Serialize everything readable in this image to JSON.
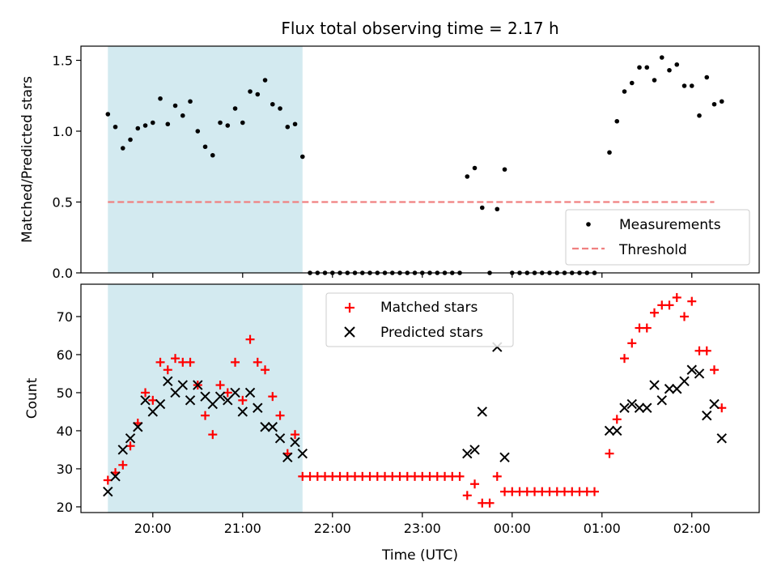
{
  "title": "Flux total observing time = 2.17 h",
  "chart_data": [
    {
      "type": "scatter",
      "panel": "top",
      "ylabel": "Matched/Predicted stars",
      "xlabel": "",
      "ylim": [
        0.0,
        1.6
      ],
      "yticks": [
        0.0,
        0.5,
        1.0,
        1.5
      ],
      "ytick_labels": [
        "0.0",
        "0.5",
        "1.0",
        "1.5"
      ],
      "shaded_interval": [
        "19:30",
        "21:40"
      ],
      "shade_color": "#d3eaf0",
      "legend_position": "lower right",
      "series": [
        {
          "name": "Measurements",
          "marker": "dot",
          "color": "#000000",
          "points": [
            [
              "19:30",
              1.12
            ],
            [
              "19:35",
              1.03
            ],
            [
              "19:40",
              0.88
            ],
            [
              "19:45",
              0.94
            ],
            [
              "19:50",
              1.02
            ],
            [
              "19:55",
              1.04
            ],
            [
              "20:00",
              1.06
            ],
            [
              "20:05",
              1.23
            ],
            [
              "20:10",
              1.05
            ],
            [
              "20:15",
              1.18
            ],
            [
              "20:20",
              1.11
            ],
            [
              "20:25",
              1.21
            ],
            [
              "20:30",
              1.0
            ],
            [
              "20:35",
              0.89
            ],
            [
              "20:40",
              0.83
            ],
            [
              "20:45",
              1.06
            ],
            [
              "20:50",
              1.04
            ],
            [
              "20:55",
              1.16
            ],
            [
              "21:00",
              1.06
            ],
            [
              "21:05",
              1.28
            ],
            [
              "21:10",
              1.26
            ],
            [
              "21:15",
              1.36
            ],
            [
              "21:20",
              1.19
            ],
            [
              "21:25",
              1.16
            ],
            [
              "21:30",
              1.03
            ],
            [
              "21:35",
              1.05
            ],
            [
              "21:40",
              0.82
            ],
            [
              "21:45",
              0.0
            ],
            [
              "21:50",
              0.0
            ],
            [
              "21:55",
              0.0
            ],
            [
              "22:00",
              0.0
            ],
            [
              "22:05",
              0.0
            ],
            [
              "22:10",
              0.0
            ],
            [
              "22:15",
              0.0
            ],
            [
              "22:20",
              0.0
            ],
            [
              "22:25",
              0.0
            ],
            [
              "22:30",
              0.0
            ],
            [
              "22:35",
              0.0
            ],
            [
              "22:40",
              0.0
            ],
            [
              "22:45",
              0.0
            ],
            [
              "22:50",
              0.0
            ],
            [
              "22:55",
              0.0
            ],
            [
              "23:00",
              0.0
            ],
            [
              "23:05",
              0.0
            ],
            [
              "23:10",
              0.0
            ],
            [
              "23:15",
              0.0
            ],
            [
              "23:20",
              0.0
            ],
            [
              "23:25",
              0.0
            ],
            [
              "23:30",
              0.68
            ],
            [
              "23:35",
              0.74
            ],
            [
              "23:40",
              0.46
            ],
            [
              "23:45",
              0.0
            ],
            [
              "23:50",
              0.45
            ],
            [
              "23:55",
              0.73
            ],
            [
              "00:00",
              0.0
            ],
            [
              "00:05",
              0.0
            ],
            [
              "00:10",
              0.0
            ],
            [
              "00:15",
              0.0
            ],
            [
              "00:20",
              0.0
            ],
            [
              "00:25",
              0.0
            ],
            [
              "00:30",
              0.0
            ],
            [
              "00:35",
              0.0
            ],
            [
              "00:40",
              0.0
            ],
            [
              "00:45",
              0.0
            ],
            [
              "00:50",
              0.0
            ],
            [
              "00:55",
              0.0
            ],
            [
              "01:05",
              0.85
            ],
            [
              "01:10",
              1.07
            ],
            [
              "01:15",
              1.28
            ],
            [
              "01:20",
              1.34
            ],
            [
              "01:25",
              1.45
            ],
            [
              "01:30",
              1.45
            ],
            [
              "01:35",
              1.36
            ],
            [
              "01:40",
              1.52
            ],
            [
              "01:45",
              1.43
            ],
            [
              "01:50",
              1.47
            ],
            [
              "01:55",
              1.32
            ],
            [
              "02:00",
              1.32
            ],
            [
              "02:05",
              1.11
            ],
            [
              "02:10",
              1.38
            ],
            [
              "02:15",
              1.19
            ],
            [
              "02:20",
              1.21
            ]
          ]
        },
        {
          "name": "Threshold",
          "marker": "dashed-line",
          "color": "#f08080",
          "points": [
            [
              "19:30",
              0.5
            ],
            [
              "02:15",
              0.5
            ]
          ]
        }
      ]
    },
    {
      "type": "scatter",
      "panel": "bottom",
      "ylabel": "Count",
      "xlabel": "Time (UTC)",
      "ylim": [
        18.5,
        78.5
      ],
      "yticks": [
        20,
        30,
        40,
        50,
        60,
        70
      ],
      "ytick_labels": [
        "20",
        "30",
        "40",
        "50",
        "60",
        "70"
      ],
      "shaded_interval": [
        "19:30",
        "21:40"
      ],
      "legend_position": "upper center",
      "x_range": [
        "19:12",
        "02:45"
      ],
      "xticks": [
        "20:00",
        "21:00",
        "22:00",
        "23:00",
        "00:00",
        "01:00",
        "02:00"
      ],
      "series": [
        {
          "name": "Matched stars",
          "marker": "plus",
          "color": "#ff0000",
          "points": [
            [
              "19:30",
              27
            ],
            [
              "19:35",
              29
            ],
            [
              "19:40",
              31
            ],
            [
              "19:45",
              36
            ],
            [
              "19:50",
              42
            ],
            [
              "19:55",
              50
            ],
            [
              "20:00",
              48
            ],
            [
              "20:05",
              58
            ],
            [
              "20:10",
              56
            ],
            [
              "20:15",
              59
            ],
            [
              "20:20",
              58
            ],
            [
              "20:25",
              58
            ],
            [
              "20:30",
              52
            ],
            [
              "20:35",
              44
            ],
            [
              "20:40",
              39
            ],
            [
              "20:45",
              52
            ],
            [
              "20:50",
              50
            ],
            [
              "20:55",
              58
            ],
            [
              "21:00",
              48
            ],
            [
              "21:05",
              64
            ],
            [
              "21:10",
              58
            ],
            [
              "21:15",
              56
            ],
            [
              "21:20",
              49
            ],
            [
              "21:25",
              44
            ],
            [
              "21:30",
              34
            ],
            [
              "21:35",
              39
            ],
            [
              "21:40",
              28
            ],
            [
              "21:45",
              28
            ],
            [
              "21:50",
              28
            ],
            [
              "21:55",
              28
            ],
            [
              "22:00",
              28
            ],
            [
              "22:05",
              28
            ],
            [
              "22:10",
              28
            ],
            [
              "22:15",
              28
            ],
            [
              "22:20",
              28
            ],
            [
              "22:25",
              28
            ],
            [
              "22:30",
              28
            ],
            [
              "22:35",
              28
            ],
            [
              "22:40",
              28
            ],
            [
              "22:45",
              28
            ],
            [
              "22:50",
              28
            ],
            [
              "22:55",
              28
            ],
            [
              "23:00",
              28
            ],
            [
              "23:05",
              28
            ],
            [
              "23:10",
              28
            ],
            [
              "23:15",
              28
            ],
            [
              "23:20",
              28
            ],
            [
              "23:25",
              28
            ],
            [
              "23:30",
              23
            ],
            [
              "23:35",
              26
            ],
            [
              "23:40",
              21
            ],
            [
              "23:45",
              21
            ],
            [
              "23:50",
              28
            ],
            [
              "23:55",
              24
            ],
            [
              "00:00",
              24
            ],
            [
              "00:05",
              24
            ],
            [
              "00:10",
              24
            ],
            [
              "00:15",
              24
            ],
            [
              "00:20",
              24
            ],
            [
              "00:25",
              24
            ],
            [
              "00:30",
              24
            ],
            [
              "00:35",
              24
            ],
            [
              "00:40",
              24
            ],
            [
              "00:45",
              24
            ],
            [
              "00:50",
              24
            ],
            [
              "00:55",
              24
            ],
            [
              "01:05",
              34
            ],
            [
              "01:10",
              43
            ],
            [
              "01:15",
              59
            ],
            [
              "01:20",
              63
            ],
            [
              "01:25",
              67
            ],
            [
              "01:30",
              67
            ],
            [
              "01:35",
              71
            ],
            [
              "01:40",
              73
            ],
            [
              "01:45",
              73
            ],
            [
              "01:50",
              75
            ],
            [
              "01:55",
              70
            ],
            [
              "02:00",
              74
            ],
            [
              "02:05",
              61
            ],
            [
              "02:10",
              61
            ],
            [
              "02:15",
              56
            ],
            [
              "02:20",
              46
            ]
          ]
        },
        {
          "name": "Predicted stars",
          "marker": "x",
          "color": "#000000",
          "points": [
            [
              "19:30",
              24
            ],
            [
              "19:35",
              28
            ],
            [
              "19:40",
              35
            ],
            [
              "19:45",
              38
            ],
            [
              "19:50",
              41
            ],
            [
              "19:55",
              48
            ],
            [
              "20:00",
              45
            ],
            [
              "20:05",
              47
            ],
            [
              "20:10",
              53
            ],
            [
              "20:15",
              50
            ],
            [
              "20:20",
              52
            ],
            [
              "20:25",
              48
            ],
            [
              "20:30",
              52
            ],
            [
              "20:35",
              49
            ],
            [
              "20:40",
              47
            ],
            [
              "20:45",
              49
            ],
            [
              "20:50",
              48
            ],
            [
              "20:55",
              50
            ],
            [
              "21:00",
              45
            ],
            [
              "21:05",
              50
            ],
            [
              "21:10",
              46
            ],
            [
              "21:15",
              41
            ],
            [
              "21:20",
              41
            ],
            [
              "21:25",
              38
            ],
            [
              "21:30",
              33
            ],
            [
              "21:35",
              37
            ],
            [
              "21:40",
              34
            ],
            [
              "23:30",
              34
            ],
            [
              "23:35",
              35
            ],
            [
              "23:40",
              45
            ],
            [
              "23:50",
              62
            ],
            [
              "23:55",
              33
            ],
            [
              "01:05",
              40
            ],
            [
              "01:10",
              40
            ],
            [
              "01:15",
              46
            ],
            [
              "01:20",
              47
            ],
            [
              "01:25",
              46
            ],
            [
              "01:30",
              46
            ],
            [
              "01:35",
              52
            ],
            [
              "01:40",
              48
            ],
            [
              "01:45",
              51
            ],
            [
              "01:50",
              51
            ],
            [
              "01:55",
              53
            ],
            [
              "02:00",
              56
            ],
            [
              "02:05",
              55
            ],
            [
              "02:10",
              44
            ],
            [
              "02:15",
              47
            ],
            [
              "02:20",
              38
            ]
          ]
        }
      ]
    }
  ]
}
